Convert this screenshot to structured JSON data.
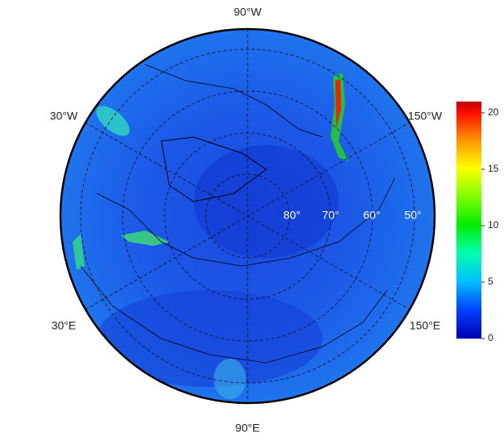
{
  "map": {
    "lon_labels": [
      "90°W",
      "30°W",
      "150°W",
      "30°E",
      "150°E",
      "90°E"
    ],
    "lat_labels": [
      "80°",
      "70°",
      "60°",
      "50°"
    ]
  },
  "colorbar": {
    "lim": [
      0,
      21
    ],
    "ticks": [
      0,
      5,
      10,
      15,
      20
    ]
  }
}
